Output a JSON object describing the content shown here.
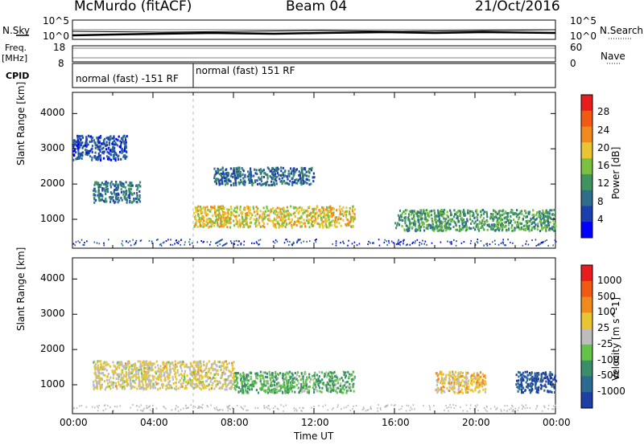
{
  "header": {
    "station": "McMurdo (fitACF)",
    "beam": "Beam 04",
    "date": "21/Oct/2016"
  },
  "strip_labels": {
    "nsky": "N.Sky",
    "freq_line1": "Freq.",
    "freq_line2": "[MHz]",
    "cpid": "CPID",
    "nsearch": "N.Search",
    "nave": "Nave",
    "left_top_hi": "10^5",
    "left_top_lo": "10^0",
    "right_top_hi": "10^5",
    "right_top_lo": "10^0",
    "freq_hi": "18",
    "freq_lo": "8",
    "nave_hi": "60",
    "nave_lo": "0",
    "cpid_mode_1": "normal (fast) -151 RF",
    "cpid_mode_2": "normal (fast) 151 RF"
  },
  "axes": {
    "ylabel": "Slant Range [km]",
    "xlabel": "Time UT",
    "y_ticks": [
      "1000",
      "2000",
      "3000",
      "4000"
    ],
    "x_ticks": [
      "00:00",
      "04:00",
      "08:00",
      "12:00",
      "16:00",
      "20:00",
      "00:00"
    ]
  },
  "power_colorbar": {
    "label": "Power [dB]",
    "ticks": [
      "4",
      "8",
      "12",
      "16",
      "20",
      "24",
      "28"
    ],
    "colors": [
      "#0000ff",
      "#1c3fb0",
      "#2e6e8a",
      "#3f9460",
      "#7ac142",
      "#e8c531",
      "#f08a1c",
      "#f25a14",
      "#e81c1c"
    ]
  },
  "velocity_colorbar": {
    "label": "Velocity [m s^-1]",
    "ticks": [
      "1000",
      "500",
      "100",
      "25",
      "-25",
      "-100",
      "-500",
      "-1000"
    ],
    "colors": [
      "#1f3fa6",
      "#2c6a8f",
      "#3a8f6a",
      "#62c24a",
      "#bdbdbd",
      "#e8c531",
      "#f08a1c",
      "#f25a14",
      "#e81c1c"
    ]
  },
  "chart_data": [
    {
      "type": "heatmap",
      "title": "",
      "xlabel": "Time UT",
      "ylabel": "Slant Range [km]",
      "xlim": [
        "00:00",
        "24:00"
      ],
      "ylim": [
        180,
        4600
      ],
      "quantity": "Power",
      "colorbar_range": [
        0,
        30
      ],
      "colorbar_unit": "dB",
      "features": [
        {
          "time": [
            "00:00",
            "02:40"
          ],
          "range_km": [
            2700,
            3400
          ],
          "value": 6
        },
        {
          "time": [
            "01:00",
            "03:20"
          ],
          "range_km": [
            1500,
            2100
          ],
          "value": 9
        },
        {
          "time": [
            "06:00",
            "14:00"
          ],
          "range_km": [
            800,
            1400
          ],
          "value": 18
        },
        {
          "time": [
            "07:00",
            "12:00"
          ],
          "range_km": [
            2000,
            2500
          ],
          "value": 8
        },
        {
          "time": [
            "16:00",
            "24:00"
          ],
          "range_km": [
            700,
            1300
          ],
          "value": 12
        }
      ]
    },
    {
      "type": "heatmap",
      "title": "",
      "xlabel": "Time UT",
      "ylabel": "Slant Range [km]",
      "xlim": [
        "00:00",
        "24:00"
      ],
      "ylim": [
        180,
        4600
      ],
      "quantity": "Velocity",
      "colorbar_range": [
        -1000,
        1000
      ],
      "colorbar_unit": "m s^-1",
      "features": [
        {
          "time": [
            "01:00",
            "08:00"
          ],
          "range_km": [
            900,
            1700
          ],
          "value": 100
        },
        {
          "time": [
            "08:00",
            "14:00"
          ],
          "range_km": [
            800,
            1400
          ],
          "value": -300
        },
        {
          "time": [
            "18:00",
            "20:30"
          ],
          "range_km": [
            800,
            1400
          ],
          "value": 200
        },
        {
          "time": [
            "22:00",
            "24:00"
          ],
          "range_km": [
            800,
            1400
          ],
          "value": -800
        }
      ]
    }
  ]
}
